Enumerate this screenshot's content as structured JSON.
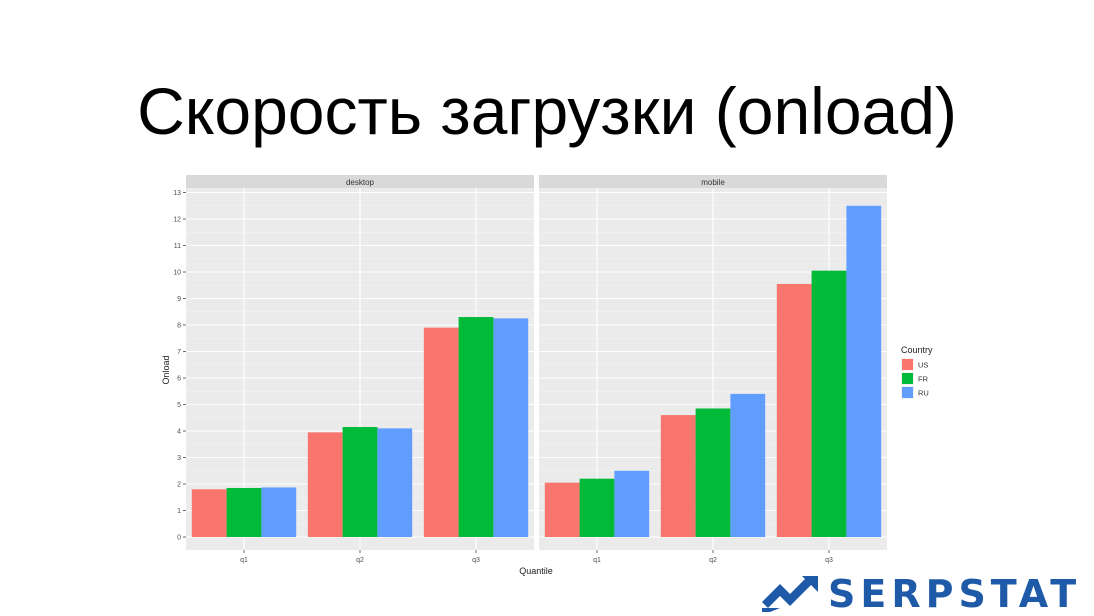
{
  "slide": {
    "title": "Скорость загрузки (onload)"
  },
  "brand": {
    "name": "SERPSTAT",
    "color": "#1f5aa8"
  },
  "chart_data": {
    "type": "bar",
    "facets": [
      "desktop",
      "mobile"
    ],
    "categories": [
      "q1",
      "q2",
      "q3"
    ],
    "xlabel": "Quantile",
    "ylabel": "Onload",
    "ylim": [
      0,
      13
    ],
    "yticks": [
      "0",
      "1",
      "2",
      "3",
      "4",
      "5",
      "6",
      "7",
      "8",
      "9",
      "10",
      "11",
      "12",
      "13"
    ],
    "grid": true,
    "legend": {
      "title": "Country",
      "position": "right"
    },
    "series": [
      {
        "name": "US",
        "color": "#F8766D",
        "values": {
          "desktop": [
            1.8,
            3.95,
            7.9
          ],
          "mobile": [
            2.05,
            4.6,
            9.55
          ]
        }
      },
      {
        "name": "FR",
        "color": "#00BA38",
        "values": {
          "desktop": [
            1.85,
            4.15,
            8.3
          ],
          "mobile": [
            2.2,
            4.85,
            10.05
          ]
        }
      },
      {
        "name": "RU",
        "color": "#619CFF",
        "values": {
          "desktop": [
            1.87,
            4.1,
            8.25
          ],
          "mobile": [
            2.5,
            5.4,
            12.5
          ]
        }
      }
    ]
  }
}
